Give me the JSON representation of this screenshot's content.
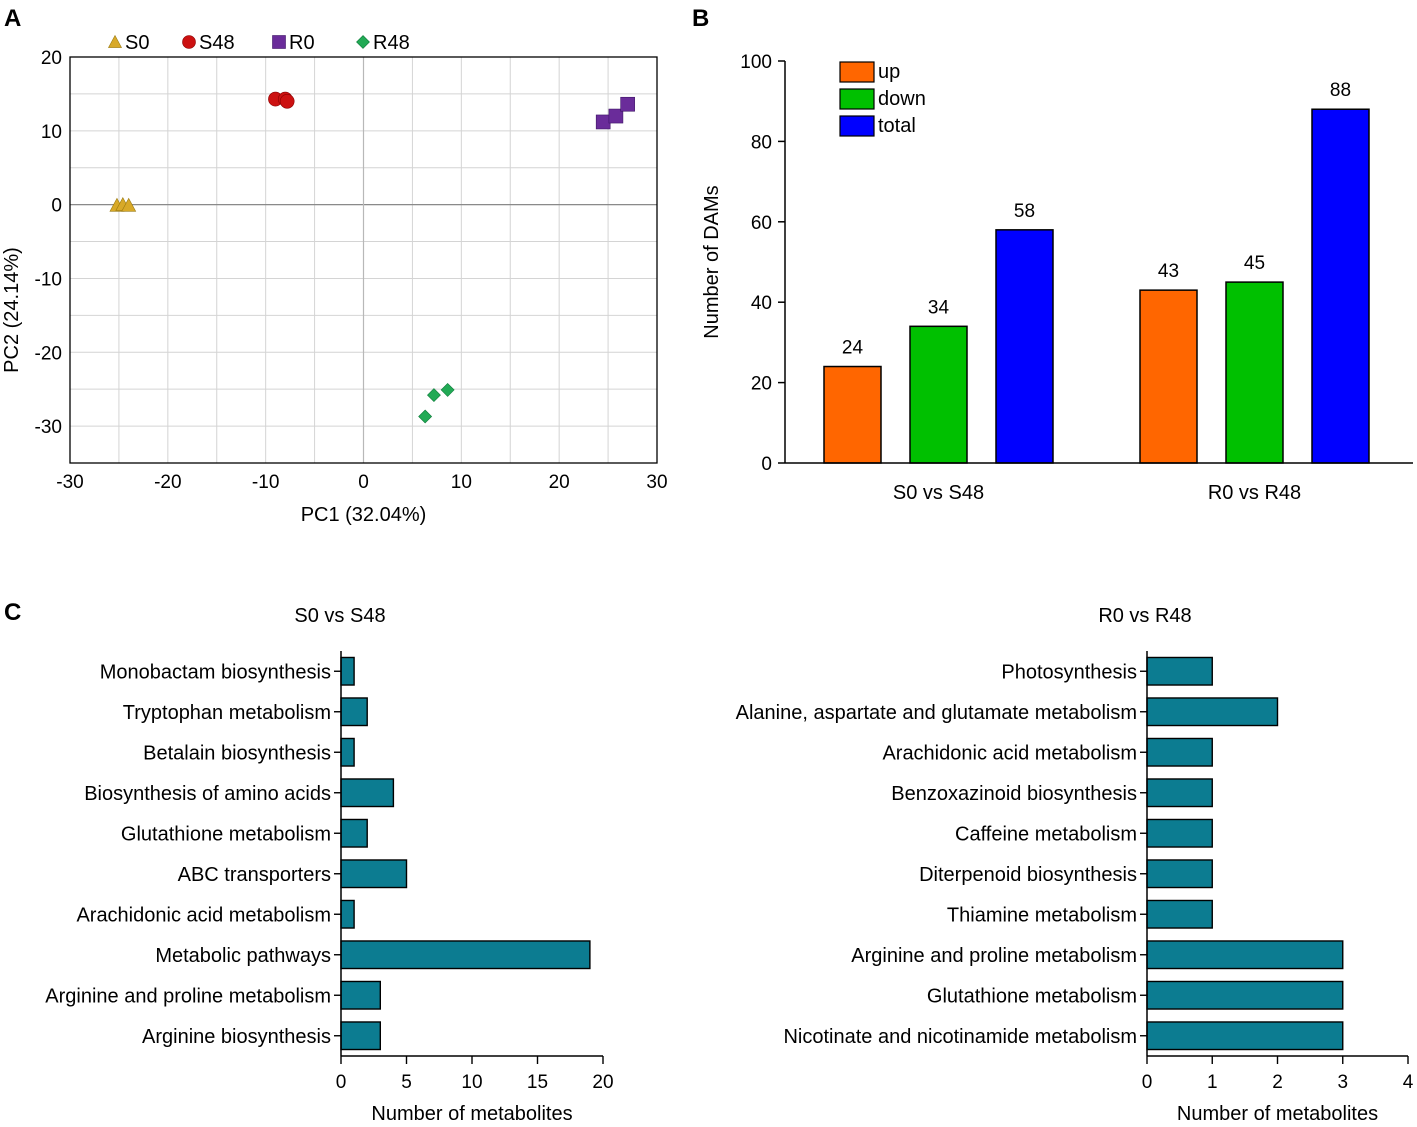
{
  "figure": {
    "panel_labels": [
      "A",
      "B",
      "C"
    ]
  },
  "chart_data": [
    {
      "panel": "A",
      "type": "scatter",
      "title": "",
      "xlabel": "PC1 (32.04%)",
      "ylabel": "PC2 (24.14%)",
      "xlim": [
        -30,
        30
      ],
      "ylim": [
        -35,
        20
      ],
      "xticks": [
        -30,
        -20,
        -10,
        0,
        10,
        20,
        30
      ],
      "yticks": [
        20,
        10,
        0,
        -10,
        -20,
        -30
      ],
      "grid": true,
      "legend_position": "top",
      "series": [
        {
          "name": "S0",
          "color": "#D8A928",
          "marker": "triangle",
          "points": [
            [
              -25.2,
              -0.1
            ],
            [
              -24.6,
              0.0
            ],
            [
              -24.0,
              -0.1
            ]
          ]
        },
        {
          "name": "S48",
          "color": "#CC1111",
          "marker": "circle",
          "points": [
            [
              -9.0,
              14.3
            ],
            [
              -8.0,
              14.3
            ],
            [
              -7.8,
              14.0
            ]
          ]
        },
        {
          "name": "R0",
          "color": "#6A2C9A",
          "marker": "square",
          "points": [
            [
              24.5,
              11.2
            ],
            [
              25.8,
              12.0
            ],
            [
              27.0,
              13.6
            ]
          ]
        },
        {
          "name": "R48",
          "color": "#22AA55",
          "marker": "diamond",
          "points": [
            [
              6.3,
              -28.7
            ],
            [
              7.2,
              -25.8
            ],
            [
              8.6,
              -25.1
            ]
          ]
        }
      ]
    },
    {
      "panel": "B",
      "type": "bar",
      "title": "",
      "xlabel": "",
      "ylabel": "Number of DAMs",
      "ylim": [
        0,
        100
      ],
      "yticks": [
        0,
        20,
        40,
        60,
        80,
        100
      ],
      "categories": [
        "S0 vs S48",
        "R0 vs R48"
      ],
      "legend_position": "top-left",
      "series": [
        {
          "name": "up",
          "color": "#FF6600",
          "values": [
            24,
            43
          ]
        },
        {
          "name": "down",
          "color": "#00C000",
          "values": [
            34,
            45
          ]
        },
        {
          "name": "total",
          "color": "#0000FF",
          "values": [
            58,
            88
          ]
        }
      ]
    },
    {
      "panel": "C",
      "type": "bar",
      "orientation": "horizontal",
      "title": "S0 vs S48",
      "xlabel": "Number of metabolites",
      "xlim": [
        0,
        20
      ],
      "xticks": [
        0,
        5,
        10,
        15,
        20
      ],
      "color": "#0C7C91",
      "categories": [
        "Monobactam biosynthesis",
        "Tryptophan metabolism",
        "Betalain biosynthesis",
        "Biosynthesis of amino acids",
        "Glutathione metabolism",
        "ABC transporters",
        "Arachidonic acid metabolism",
        "Metabolic pathways",
        "Arginine and proline metabolism",
        "Arginine biosynthesis"
      ],
      "values": [
        1,
        2,
        1,
        4,
        2,
        5,
        1,
        19,
        3,
        3
      ]
    },
    {
      "panel": "C",
      "type": "bar",
      "orientation": "horizontal",
      "title": "R0 vs R48",
      "xlabel": "Number of metabolites",
      "xlim": [
        0,
        4
      ],
      "xticks": [
        0,
        1,
        2,
        3,
        4
      ],
      "color": "#0C7C91",
      "categories": [
        "Photosynthesis",
        "Alanine, aspartate and glutamate metabolism",
        "Arachidonic acid metabolism",
        "Benzoxazinoid biosynthesis",
        "Caffeine metabolism",
        "Diterpenoid biosynthesis",
        "Thiamine metabolism",
        "Arginine and proline metabolism",
        "Glutathione metabolism",
        "Nicotinate and nicotinamide metabolism"
      ],
      "values": [
        1,
        2,
        1,
        1,
        1,
        1,
        1,
        3,
        3,
        3
      ]
    }
  ]
}
